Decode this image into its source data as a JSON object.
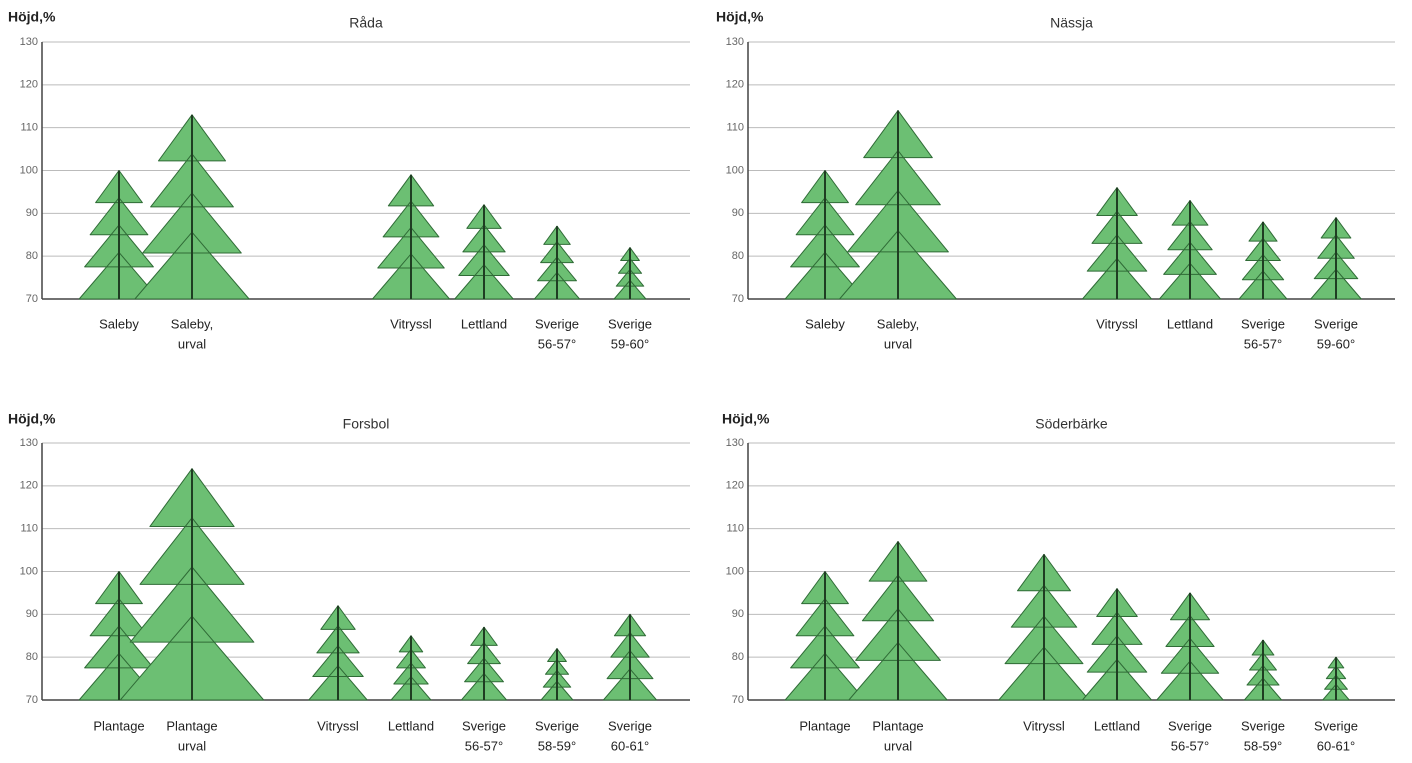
{
  "chart_data": [
    {
      "type": "pictograph",
      "title": "Råda",
      "y_label": "Höjd,%",
      "categories": [
        [
          "Saleby"
        ],
        [
          "Saleby,",
          "urval"
        ],
        null,
        null,
        [
          "Vitryssl"
        ],
        [
          "Lettland"
        ],
        [
          "Sverige",
          "56-57°"
        ],
        [
          "Sverige",
          "59-60°"
        ]
      ],
      "values": [
        100,
        113,
        null,
        null,
        99,
        92,
        87,
        82
      ],
      "color": "#6cbf73",
      "ylim": [
        70,
        130
      ],
      "yticks": [
        70,
        80,
        90,
        100,
        110,
        120,
        130
      ],
      "grid": true
    },
    {
      "type": "pictograph",
      "title": "Nässja",
      "y_label": "Höjd,%",
      "categories": [
        [
          "Saleby"
        ],
        [
          "Saleby,",
          "urval"
        ],
        null,
        null,
        [
          "Vitryssl"
        ],
        [
          "Lettland"
        ],
        [
          "Sverige",
          "56-57°"
        ],
        [
          "Sverige",
          "59-60°"
        ]
      ],
      "values": [
        100,
        114,
        null,
        null,
        96,
        93,
        88,
        89
      ],
      "color": "#6cbf73",
      "ylim": [
        70,
        130
      ],
      "yticks": [
        70,
        80,
        90,
        100,
        110,
        120,
        130
      ],
      "grid": true
    },
    {
      "type": "pictograph",
      "title": "Forsbol",
      "y_label": "Höjd,%",
      "categories": [
        [
          "Plantage"
        ],
        [
          "Plantage",
          "urval"
        ],
        null,
        [
          "Vitryssl"
        ],
        [
          "Lettland"
        ],
        [
          "Sverige",
          "56-57°"
        ],
        [
          "Sverige",
          "58-59°"
        ],
        [
          "Sverige",
          "60-61°"
        ]
      ],
      "values": [
        100,
        124,
        null,
        92,
        85,
        87,
        82,
        90
      ],
      "color": "#6cbf73",
      "ylim": [
        70,
        130
      ],
      "yticks": [
        70,
        80,
        90,
        100,
        110,
        120,
        130
      ],
      "grid": true
    },
    {
      "type": "pictograph",
      "title": "Söderbärke",
      "y_label": "Höjd,%",
      "categories": [
        [
          "Plantage"
        ],
        [
          "Plantage",
          "urval"
        ],
        null,
        [
          "Vitryssl"
        ],
        [
          "Lettland"
        ],
        [
          "Sverige",
          "56-57°"
        ],
        [
          "Sverige",
          "58-59°"
        ],
        [
          "Sverige",
          "60-61°"
        ]
      ],
      "values": [
        100,
        107,
        null,
        104,
        96,
        95,
        84,
        80
      ],
      "color": "#6cbf73",
      "ylim": [
        70,
        130
      ],
      "yticks": [
        70,
        80,
        90,
        100,
        110,
        120,
        130
      ],
      "grid": true
    }
  ]
}
